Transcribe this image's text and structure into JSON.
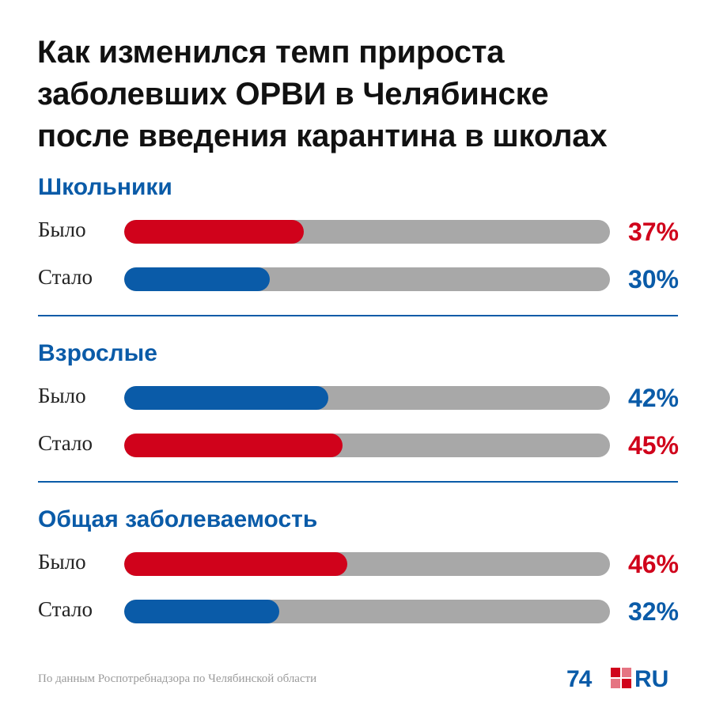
{
  "title_lines": [
    "Как изменился темп прироста",
    "заболевших ОРВИ в Челябинске",
    "после введения карантина в школах"
  ],
  "colors": {
    "red": "#d0021b",
    "blue": "#0a5ba8",
    "track": "#a8a8a8"
  },
  "chart_data": {
    "type": "bar",
    "title": "Как изменился темп прироста заболевших ОРВИ в Челябинске после введения карантина в школах",
    "ylim": [
      0,
      100
    ],
    "groups": [
      {
        "name": "Школьники",
        "rows": [
          {
            "label": "Было",
            "value": 37,
            "display": "37%",
            "color": "#d0021b"
          },
          {
            "label": "Стало",
            "value": 30,
            "display": "30%",
            "color": "#0a5ba8"
          }
        ]
      },
      {
        "name": "Взрослые",
        "rows": [
          {
            "label": "Было",
            "value": 42,
            "display": "42%",
            "color": "#0a5ba8"
          },
          {
            "label": "Стало",
            "value": 45,
            "display": "45%",
            "color": "#d0021b"
          }
        ]
      },
      {
        "name": "Общая заболеваемость",
        "rows": [
          {
            "label": "Было",
            "value": 46,
            "display": "46%",
            "color": "#d0021b"
          },
          {
            "label": "Стало",
            "value": 32,
            "display": "32%",
            "color": "#0a5ba8"
          }
        ]
      }
    ]
  },
  "source": "По данным Роспотребнадзора по Челябинской области",
  "logo": {
    "number": "74",
    "suffix": "RU"
  }
}
